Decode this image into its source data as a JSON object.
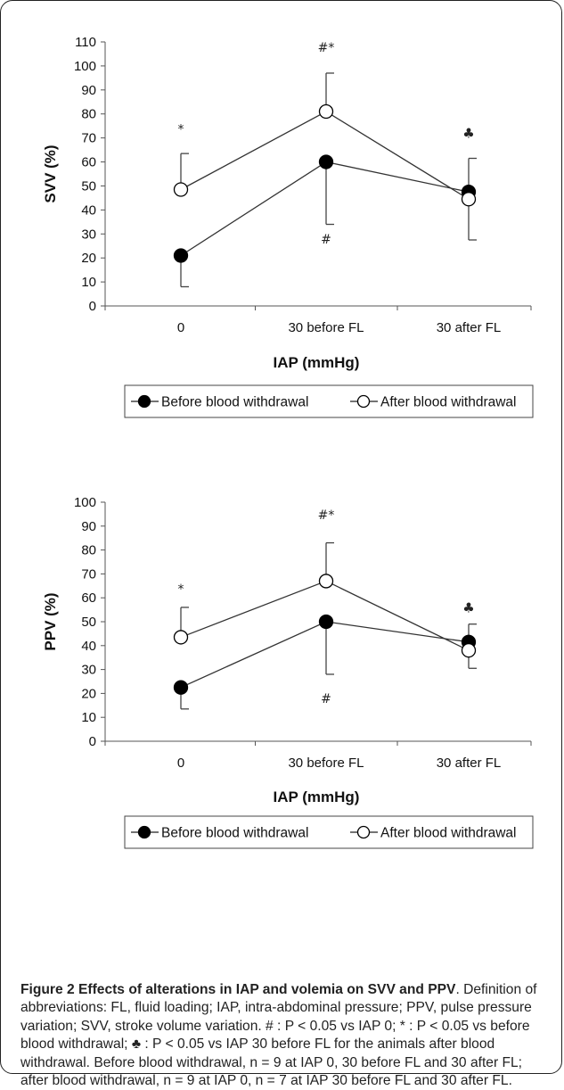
{
  "chart_data": [
    {
      "type": "line",
      "categories": [
        "0",
        "30 before FL",
        "30 after FL"
      ],
      "xlabel": "IAP (mmHg)",
      "ylabel": "SVV (%)",
      "ylim": [
        0,
        110
      ],
      "yticks": [
        0,
        10,
        20,
        30,
        40,
        50,
        60,
        70,
        80,
        90,
        100,
        110
      ],
      "grid": false,
      "legend_position": "bottom",
      "series": [
        {
          "name": "Before blood withdrawal",
          "marker": "filled-circle",
          "values": [
            21,
            60,
            47.5
          ],
          "error": [
            13,
            26,
            14
          ],
          "error_direction": [
            "down",
            "down",
            "up"
          ]
        },
        {
          "name": "After blood withdrawal",
          "marker": "open-circle",
          "values": [
            48.5,
            81,
            44.5
          ],
          "error": [
            15,
            16,
            17
          ],
          "error_direction": [
            "up",
            "up",
            "down"
          ]
        }
      ],
      "annotations": [
        {
          "category": "0",
          "text": "*",
          "value": 72
        },
        {
          "category": "30 before FL",
          "text": "#*",
          "value": 106
        },
        {
          "category": "30 before FL",
          "text": "#",
          "value": 26
        },
        {
          "category": "30 after FL",
          "text": "♣",
          "value": 70
        }
      ]
    },
    {
      "type": "line",
      "categories": [
        "0",
        "30 before FL",
        "30 after FL"
      ],
      "xlabel": "IAP (mmHg)",
      "ylabel": "PPV (%)",
      "ylim": [
        0,
        100
      ],
      "yticks": [
        0,
        10,
        20,
        30,
        40,
        50,
        60,
        70,
        80,
        90,
        100
      ],
      "grid": false,
      "legend_position": "bottom",
      "series": [
        {
          "name": "Before blood withdrawal",
          "marker": "filled-circle",
          "values": [
            22.5,
            50,
            41.5
          ],
          "error": [
            9,
            22,
            7.5
          ],
          "error_direction": [
            "down",
            "down",
            "up"
          ]
        },
        {
          "name": "After blood withdrawal",
          "marker": "open-circle",
          "values": [
            43.5,
            67,
            38
          ],
          "error": [
            12.5,
            16,
            7.5
          ],
          "error_direction": [
            "up",
            "up",
            "down"
          ]
        }
      ],
      "annotations": [
        {
          "category": "0",
          "text": "*",
          "value": 62
        },
        {
          "category": "30 before FL",
          "text": "#*",
          "value": 93
        },
        {
          "category": "30 before FL",
          "text": "#",
          "value": 16
        },
        {
          "category": "30 after FL",
          "text": "♣",
          "value": 54
        }
      ]
    }
  ],
  "caption": {
    "title": "Figure 2 Effects of alterations in IAP and volemia on SVV and PPV",
    "text": ". Definition of abbreviations: FL, fluid loading; IAP, intra-abdominal pressure; PPV, pulse pressure variation; SVV, stroke volume variation. # : P < 0.05 vs IAP 0; * : P < 0.05 vs before blood withdrawal; ♣ : P < 0.05 vs IAP 30 before FL for the animals after blood withdrawal. Before blood withdrawal, n = 9 at IAP 0, 30 before FL and 30 after FL; after blood withdrawal, n = 9 at IAP 0, n = 7 at IAP 30 before FL and 30 after FL."
  }
}
